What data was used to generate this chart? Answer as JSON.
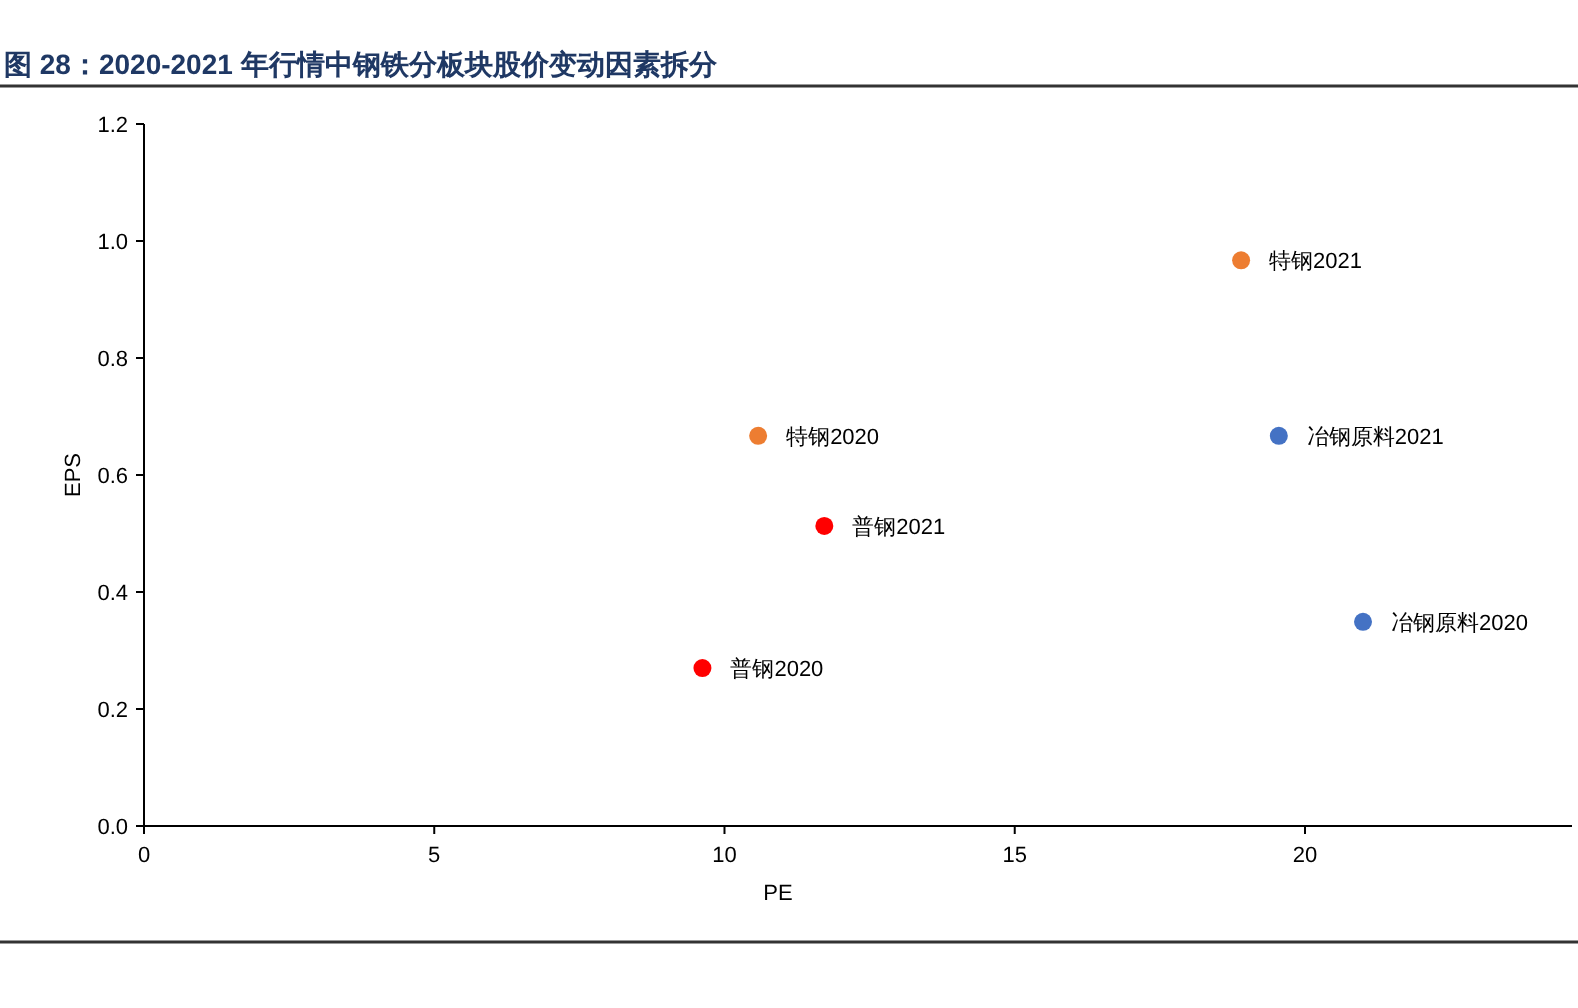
{
  "chart_data": {
    "type": "scatter",
    "title": "图 28：2020-2021 年行情中钢铁分板块股价变动因素拆分",
    "xlabel": "PE",
    "ylabel": "EPS",
    "marker": "circle",
    "grid": false,
    "xlim": [
      0,
      24.6
    ],
    "xticks": [
      0,
      5,
      10,
      15,
      20
    ],
    "ylim": [
      0,
      1.2
    ],
    "yticks": [
      {
        "value": 0,
        "label": "0.0"
      },
      0.2,
      0.4,
      0.6,
      0.8,
      {
        "value": 1,
        "label": "1.0"
      },
      1.2
    ],
    "series": [
      {
        "name": "特钢2021",
        "color": "#ed7d31",
        "x": [
          18.9
        ],
        "values": [
          0.967
        ]
      },
      {
        "name": "特钢2020",
        "color": "#ed7d31",
        "x": [
          10.58
        ],
        "values": [
          0.667
        ]
      },
      {
        "name": "冶钢原料2021",
        "color": "#4472c4",
        "x": [
          19.55
        ],
        "values": [
          0.667
        ]
      },
      {
        "name": "冶钢原料2020",
        "color": "#4472c4",
        "x": [
          21.0
        ],
        "values": [
          0.349
        ]
      },
      {
        "name": "普钢2021",
        "color": "#ff0000",
        "x": [
          11.72
        ],
        "values": [
          0.513
        ]
      },
      {
        "name": "普钢2020",
        "color": "#ff0000",
        "x": [
          9.62
        ],
        "values": [
          0.27
        ]
      }
    ]
  }
}
